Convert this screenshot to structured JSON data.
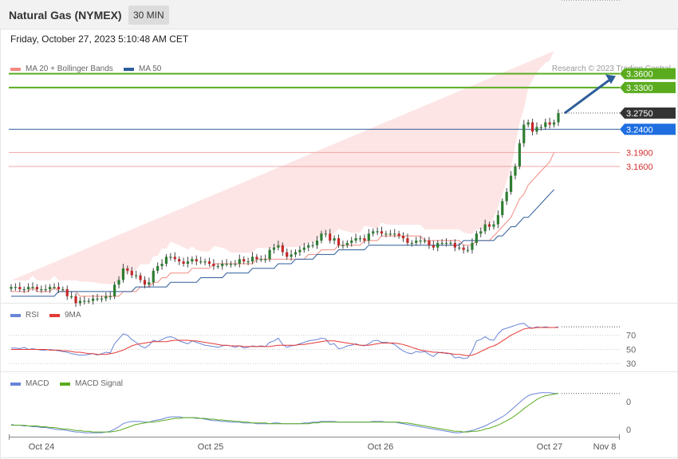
{
  "header": {
    "title": "Natural Gas (NYMEX)",
    "timeframe": "30 MIN"
  },
  "date_text": "Friday, October 27, 2023 5:10:48 AM CET",
  "copyright": "Research © 2023 Trading Central",
  "colors": {
    "ma20": "#f28b82",
    "ma50": "#2e5d9a",
    "resistance": "#5aac1e",
    "support": "#d32f2f",
    "bull": "#2e7d32",
    "bear": "#c62828",
    "rsi": "#6a85d8",
    "rsi_ma": "#e53935",
    "macd": "#6a85d8",
    "signal": "#5aac1e",
    "arrow": "#2e5d9a"
  },
  "legend_main": [
    {
      "label": "MA 20 + Bollinger Bands",
      "color": "#f28b82"
    },
    {
      "label": "MA 50",
      "color": "#2e5d9a"
    }
  ],
  "legend_rsi": [
    {
      "label": "RSI",
      "color": "#6a85d8"
    },
    {
      "label": "9MA",
      "color": "#e53935"
    }
  ],
  "legend_macd": [
    {
      "label": "MACD",
      "color": "#6a85d8"
    },
    {
      "label": "MACD Signal",
      "color": "#5aac1e"
    }
  ],
  "chart_data": [
    {
      "type": "candlestick",
      "title": "Natural Gas (NYMEX)",
      "x_labels": [
        "Oct 24",
        "Oct 25",
        "Oct 26",
        "Oct 27",
        "Nov 8"
      ],
      "ylim": [
        2.84,
        3.39
      ],
      "last_price": "3.2750",
      "levels": [
        {
          "value": 3.36,
          "label": "3.3600",
          "kind": "resistance"
        },
        {
          "value": 3.33,
          "label": "3.3300",
          "kind": "resistance"
        },
        {
          "value": 3.24,
          "label": "3.2400",
          "kind": "pivot"
        },
        {
          "value": 3.19,
          "label": "3.1900",
          "kind": "support"
        },
        {
          "value": 3.16,
          "label": "3.1600",
          "kind": "support"
        }
      ],
      "close_series": [
        2.9,
        2.9,
        2.895,
        2.895,
        2.9,
        2.9,
        2.895,
        2.895,
        2.895,
        2.9,
        2.9,
        2.895,
        2.895,
        2.88,
        2.88,
        2.865,
        2.87,
        2.87,
        2.87,
        2.875,
        2.875,
        2.875,
        2.88,
        2.88,
        2.905,
        2.915,
        2.94,
        2.935,
        2.925,
        2.925,
        2.915,
        2.905,
        2.91,
        2.935,
        2.945,
        2.95,
        2.965,
        2.965,
        2.96,
        2.955,
        2.95,
        2.955,
        2.96,
        2.955,
        2.955,
        2.955,
        2.95,
        2.945,
        2.945,
        2.95,
        2.95,
        2.95,
        2.95,
        2.96,
        2.955,
        2.955,
        2.965,
        2.96,
        2.96,
        2.96,
        2.98,
        2.985,
        2.99,
        2.975,
        2.965,
        2.97,
        2.975,
        2.98,
        2.985,
        2.99,
        2.99,
        3.0,
        3.015,
        3.015,
        3.0,
        3.005,
        2.99,
        2.99,
        2.995,
        3.0,
        3.005,
        3.005,
        3.0,
        3.015,
        3.02,
        3.02,
        3.015,
        3.015,
        3.015,
        3.015,
        3.01,
        3.005,
        2.995,
        2.995,
        3.0,
        3.0,
        3.0,
        2.99,
        2.985,
        2.995,
        2.995,
        2.995,
        2.995,
        2.985,
        2.985,
        2.98,
        2.98,
        2.995,
        3.015,
        3.02,
        3.035,
        3.03,
        3.035,
        3.055,
        3.085,
        3.105,
        3.14,
        3.16,
        3.21,
        3.25,
        3.255,
        3.235,
        3.245,
        3.245,
        3.255,
        3.25,
        3.255,
        3.275
      ],
      "ma20": [
        2.89,
        2.89,
        2.89,
        2.89,
        2.89,
        2.9,
        2.89,
        2.89,
        2.89,
        2.89,
        2.9,
        2.89,
        2.89,
        2.89,
        2.89,
        2.89,
        2.88,
        2.88,
        2.88,
        2.88,
        2.88,
        2.88,
        2.88,
        2.88,
        2.88,
        2.88,
        2.89,
        2.89,
        2.89,
        2.89,
        2.9,
        2.9,
        2.9,
        2.91,
        2.91,
        2.92,
        2.92,
        2.93,
        2.93,
        2.93,
        2.93,
        2.93,
        2.94,
        2.94,
        2.94,
        2.94,
        2.94,
        2.95,
        2.95,
        2.95,
        2.95,
        2.95,
        2.95,
        2.95,
        2.95,
        2.95,
        2.95,
        2.96,
        2.96,
        2.96,
        2.96,
        2.96,
        2.96,
        2.96,
        2.96,
        2.96,
        2.96,
        2.96,
        2.96,
        2.97,
        2.97,
        2.97,
        2.98,
        2.98,
        2.98,
        2.98,
        2.99,
        2.99,
        2.99,
        2.99,
        2.99,
        2.99,
        3.0,
        3.0,
        3.0,
        3.0,
        3.01,
        3.01,
        3.01,
        3.01,
        3.01,
        3.01,
        3.01,
        3.01,
        3.01,
        3.01,
        3.0,
        3.0,
        3.0,
        3.0,
        3.0,
        3.0,
        3.0,
        3.0,
        3.0,
        2.99,
        2.99,
        2.99,
        3.0,
        3.0,
        3.0,
        3.0,
        3.01,
        3.02,
        3.03,
        3.04,
        3.05,
        3.07,
        3.09,
        3.1,
        3.12,
        3.13,
        3.14,
        3.15,
        3.16,
        3.17,
        3.19
      ],
      "ma50": [
        2.88,
        2.88,
        2.88,
        2.88,
        2.88,
        2.88,
        2.88,
        2.88,
        2.88,
        2.88,
        2.88,
        2.89,
        2.89,
        2.89,
        2.89,
        2.89,
        2.89,
        2.89,
        2.89,
        2.89,
        2.89,
        2.89,
        2.89,
        2.89,
        2.89,
        2.89,
        2.89,
        2.89,
        2.89,
        2.9,
        2.9,
        2.9,
        2.9,
        2.9,
        2.9,
        2.9,
        2.9,
        2.91,
        2.91,
        2.91,
        2.91,
        2.91,
        2.91,
        2.91,
        2.92,
        2.92,
        2.92,
        2.92,
        2.92,
        2.92,
        2.93,
        2.93,
        2.93,
        2.93,
        2.93,
        2.93,
        2.94,
        2.94,
        2.94,
        2.94,
        2.94,
        2.94,
        2.95,
        2.95,
        2.95,
        2.95,
        2.96,
        2.96,
        2.96,
        2.96,
        2.96,
        2.97,
        2.97,
        2.97,
        2.97,
        2.97,
        2.98,
        2.98,
        2.98,
        2.98,
        2.98,
        2.98,
        2.98,
        2.99,
        2.99,
        2.99,
        2.99,
        2.99,
        2.99,
        2.99,
        2.99,
        2.99,
        2.99,
        2.99,
        2.99,
        2.99,
        2.99,
        2.99,
        2.99,
        2.99,
        2.99,
        2.99,
        2.99,
        2.99,
        2.99,
        3.0,
        3.0,
        3.0,
        3.0,
        3.0,
        3.0,
        3.0,
        3.0,
        3.01,
        3.01,
        3.02,
        3.03,
        3.03,
        3.04,
        3.05,
        3.05,
        3.06,
        3.07,
        3.08,
        3.09,
        3.1,
        3.11
      ]
    },
    {
      "type": "line",
      "title": "RSI",
      "yticks": [
        "70",
        "50",
        "30"
      ],
      "series": [
        {
          "name": "RSI",
          "values": [
            52,
            52,
            51,
            53,
            50,
            51,
            50,
            49,
            49,
            50,
            49,
            48,
            47,
            46,
            44,
            43,
            42,
            42,
            43,
            44,
            42,
            44,
            46,
            45,
            58,
            65,
            72,
            70,
            64,
            60,
            55,
            52,
            56,
            63,
            61,
            64,
            67,
            68,
            66,
            62,
            60,
            58,
            62,
            60,
            58,
            56,
            55,
            54,
            53,
            55,
            56,
            55,
            53,
            55,
            52,
            53,
            55,
            54,
            55,
            54,
            60,
            62,
            66,
            57,
            53,
            55,
            56,
            58,
            60,
            62,
            63,
            64,
            66,
            65,
            57,
            58,
            51,
            52,
            55,
            56,
            58,
            56,
            55,
            58,
            62,
            63,
            60,
            60,
            59,
            57,
            52,
            48,
            45,
            44,
            47,
            46,
            47,
            43,
            40,
            45,
            46,
            44,
            44,
            38,
            39,
            37,
            38,
            48,
            62,
            64,
            68,
            64,
            63,
            72,
            78,
            80,
            82,
            84,
            86,
            87,
            82,
            80,
            82,
            81,
            82,
            81,
            81,
            82
          ]
        },
        {
          "name": "9MA",
          "values": [
            50,
            50,
            50,
            50,
            50,
            50,
            50,
            50,
            50,
            49,
            49,
            49,
            48,
            48,
            47,
            46,
            46,
            45,
            44,
            44,
            43,
            43,
            43,
            44,
            45,
            47,
            49,
            52,
            55,
            57,
            58,
            59,
            60,
            61,
            61,
            61,
            61,
            62,
            63,
            63,
            63,
            63,
            62,
            62,
            61,
            60,
            59,
            58,
            57,
            56,
            56,
            55,
            55,
            55,
            54,
            54,
            54,
            54,
            54,
            54,
            54,
            55,
            56,
            56,
            56,
            56,
            56,
            57,
            57,
            58,
            59,
            60,
            61,
            62,
            62,
            62,
            61,
            60,
            59,
            58,
            57,
            56,
            56,
            56,
            57,
            58,
            59,
            59,
            59,
            59,
            58,
            57,
            55,
            53,
            51,
            49,
            48,
            47,
            46,
            46,
            45,
            45,
            44,
            43,
            43,
            42,
            41,
            42,
            44,
            47,
            50,
            53,
            55,
            58,
            62,
            66,
            70,
            73,
            76,
            79,
            80,
            80,
            81,
            81,
            81,
            81,
            81,
            81
          ]
        }
      ]
    },
    {
      "type": "line",
      "title": "MACD",
      "yticks": [
        "0",
        "0"
      ],
      "series": [
        {
          "name": "MACD",
          "values": [
            0.001,
            0.0,
            0.0,
            -0.001,
            -0.001,
            -0.002,
            -0.002,
            -0.003,
            -0.003,
            -0.004,
            -0.005,
            -0.006,
            -0.006,
            -0.007,
            -0.008,
            -0.009,
            -0.009,
            -0.01,
            -0.01,
            -0.01,
            -0.01,
            -0.01,
            -0.009,
            -0.008,
            -0.005,
            -0.002,
            0.002,
            0.004,
            0.005,
            0.005,
            0.005,
            0.004,
            0.004,
            0.006,
            0.007,
            0.008,
            0.01,
            0.011,
            0.011,
            0.011,
            0.01,
            0.01,
            0.01,
            0.009,
            0.009,
            0.008,
            0.007,
            0.006,
            0.006,
            0.005,
            0.005,
            0.004,
            0.004,
            0.004,
            0.003,
            0.003,
            0.003,
            0.002,
            0.002,
            0.002,
            0.002,
            0.003,
            0.003,
            0.002,
            0.002,
            0.002,
            0.002,
            0.002,
            0.003,
            0.003,
            0.004,
            0.004,
            0.005,
            0.005,
            0.005,
            0.005,
            0.004,
            0.004,
            0.004,
            0.004,
            0.004,
            0.004,
            0.004,
            0.004,
            0.005,
            0.005,
            0.005,
            0.004,
            0.004,
            0.004,
            0.003,
            0.002,
            0.001,
            0.0,
            -0.001,
            -0.002,
            -0.003,
            -0.004,
            -0.005,
            -0.006,
            -0.007,
            -0.008,
            -0.009,
            -0.01,
            -0.01,
            -0.009,
            -0.008,
            -0.007,
            -0.005,
            -0.003,
            -0.001,
            0.002,
            0.005,
            0.008,
            0.011,
            0.015,
            0.02,
            0.025,
            0.03,
            0.035,
            0.039,
            0.041,
            0.042,
            0.043,
            0.043,
            0.043,
            0.042,
            0.042
          ]
        },
        {
          "name": "MACD Signal",
          "values": [
            0.0,
            0.0,
            0.0,
            0.0,
            -0.001,
            -0.001,
            -0.001,
            -0.002,
            -0.002,
            -0.003,
            -0.003,
            -0.004,
            -0.005,
            -0.005,
            -0.006,
            -0.007,
            -0.007,
            -0.008,
            -0.008,
            -0.009,
            -0.009,
            -0.009,
            -0.009,
            -0.009,
            -0.008,
            -0.007,
            -0.005,
            -0.003,
            -0.001,
            0.001,
            0.002,
            0.003,
            0.004,
            0.004,
            0.005,
            0.006,
            0.007,
            0.008,
            0.009,
            0.009,
            0.01,
            0.01,
            0.01,
            0.01,
            0.009,
            0.009,
            0.008,
            0.008,
            0.007,
            0.007,
            0.006,
            0.006,
            0.005,
            0.005,
            0.004,
            0.004,
            0.003,
            0.003,
            0.003,
            0.003,
            0.002,
            0.002,
            0.002,
            0.002,
            0.002,
            0.002,
            0.002,
            0.002,
            0.002,
            0.002,
            0.003,
            0.003,
            0.004,
            0.004,
            0.004,
            0.004,
            0.004,
            0.004,
            0.004,
            0.004,
            0.004,
            0.004,
            0.004,
            0.004,
            0.004,
            0.004,
            0.004,
            0.004,
            0.004,
            0.004,
            0.004,
            0.003,
            0.003,
            0.002,
            0.001,
            0.0,
            -0.001,
            -0.002,
            -0.003,
            -0.004,
            -0.005,
            -0.006,
            -0.007,
            -0.008,
            -0.008,
            -0.009,
            -0.009,
            -0.008,
            -0.008,
            -0.007,
            -0.005,
            -0.004,
            -0.002,
            0.0,
            0.003,
            0.006,
            0.009,
            0.013,
            0.017,
            0.022,
            0.026,
            0.03,
            0.034,
            0.037,
            0.039,
            0.04,
            0.041,
            0.042
          ]
        }
      ]
    }
  ]
}
